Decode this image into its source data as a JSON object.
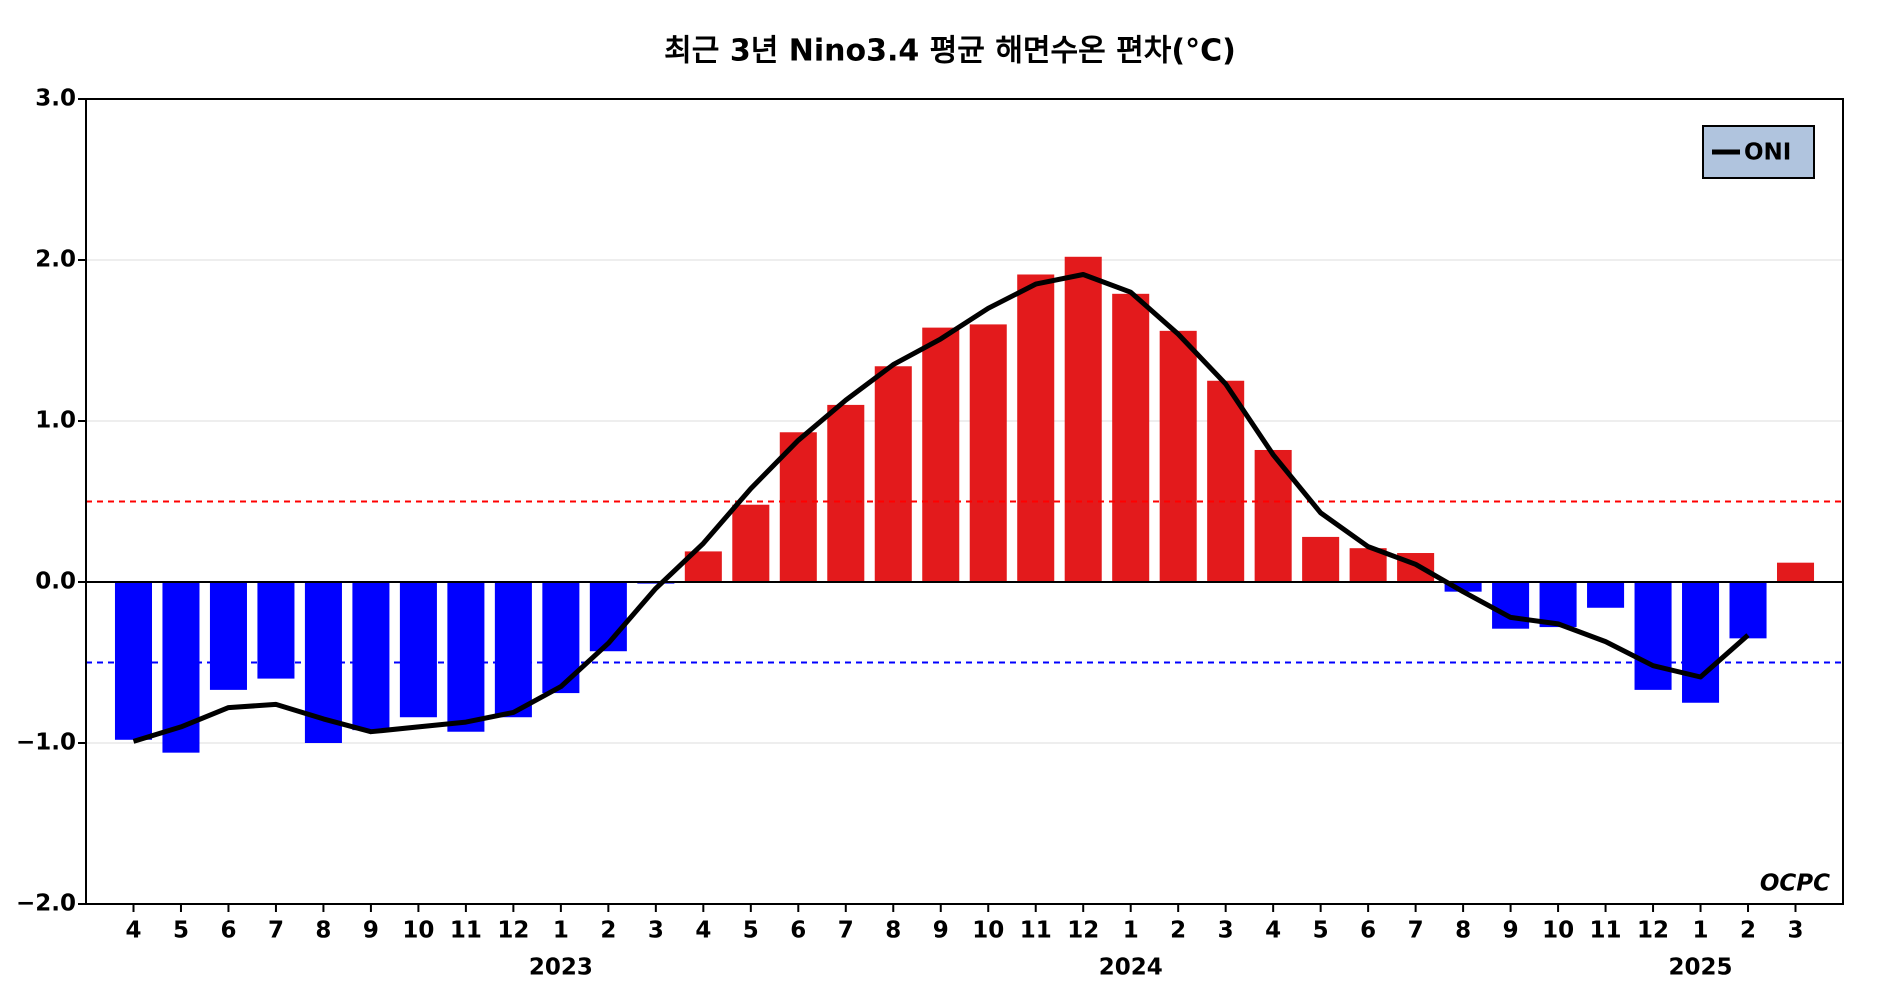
{
  "chart_data": {
    "type": "bar",
    "title": "최근 3년 Nino3.4 평균 해면수온 편차(°C)",
    "categories": [
      "4",
      "5",
      "6",
      "7",
      "8",
      "9",
      "10",
      "11",
      "12",
      "1",
      "2",
      "3",
      "4",
      "5",
      "6",
      "7",
      "8",
      "9",
      "10",
      "11",
      "12",
      "1",
      "2",
      "3",
      "4",
      "5",
      "6",
      "7",
      "8",
      "9",
      "10",
      "11",
      "12",
      "1",
      "2",
      "3"
    ],
    "year_labels": [
      "2023",
      "2024",
      "2025"
    ],
    "values": [
      -0.98,
      -1.06,
      -0.67,
      -0.6,
      -1.0,
      -0.92,
      -0.84,
      -0.93,
      -0.84,
      -0.69,
      -0.43,
      -0.01,
      0.19,
      0.48,
      0.93,
      1.1,
      1.34,
      1.58,
      1.6,
      1.91,
      2.02,
      1.79,
      1.56,
      1.25,
      0.82,
      0.28,
      0.21,
      0.18,
      -0.06,
      -0.29,
      -0.28,
      -0.16,
      -0.67,
      -0.75,
      -0.35,
      0.12
    ],
    "colors": {
      "positive": "#e31a1c",
      "negative": "#0000ff"
    },
    "series": [
      {
        "name": "ONI",
        "color": "#000000",
        "values": [
          -0.99,
          -0.9,
          -0.78,
          -0.76,
          -0.85,
          -0.93,
          -0.9,
          -0.87,
          -0.81,
          -0.65,
          -0.38,
          -0.04,
          0.24,
          0.58,
          0.88,
          1.13,
          1.35,
          1.51,
          1.7,
          1.85,
          1.91,
          1.8,
          1.54,
          1.23,
          0.79,
          0.43,
          0.22,
          0.11,
          -0.06,
          -0.22,
          -0.26,
          -0.37,
          -0.52,
          -0.59,
          -0.33,
          null
        ]
      }
    ],
    "reference_lines": [
      {
        "value": 0.5,
        "color": "#ff0000"
      },
      {
        "value": -0.5,
        "color": "#0000ff"
      }
    ],
    "ylim": [
      -2,
      3
    ],
    "yticks": [
      {
        "value": -2,
        "label": "−2.0"
      },
      {
        "value": -1,
        "label": "−1.0"
      },
      {
        "value": 0,
        "label": "0.0"
      },
      {
        "value": 1,
        "label": "1.0"
      },
      {
        "value": 2,
        "label": "2.0"
      },
      {
        "value": 3,
        "label": "3.0"
      }
    ],
    "grid": true,
    "legend": "upper right",
    "watermark": "OCPC"
  }
}
